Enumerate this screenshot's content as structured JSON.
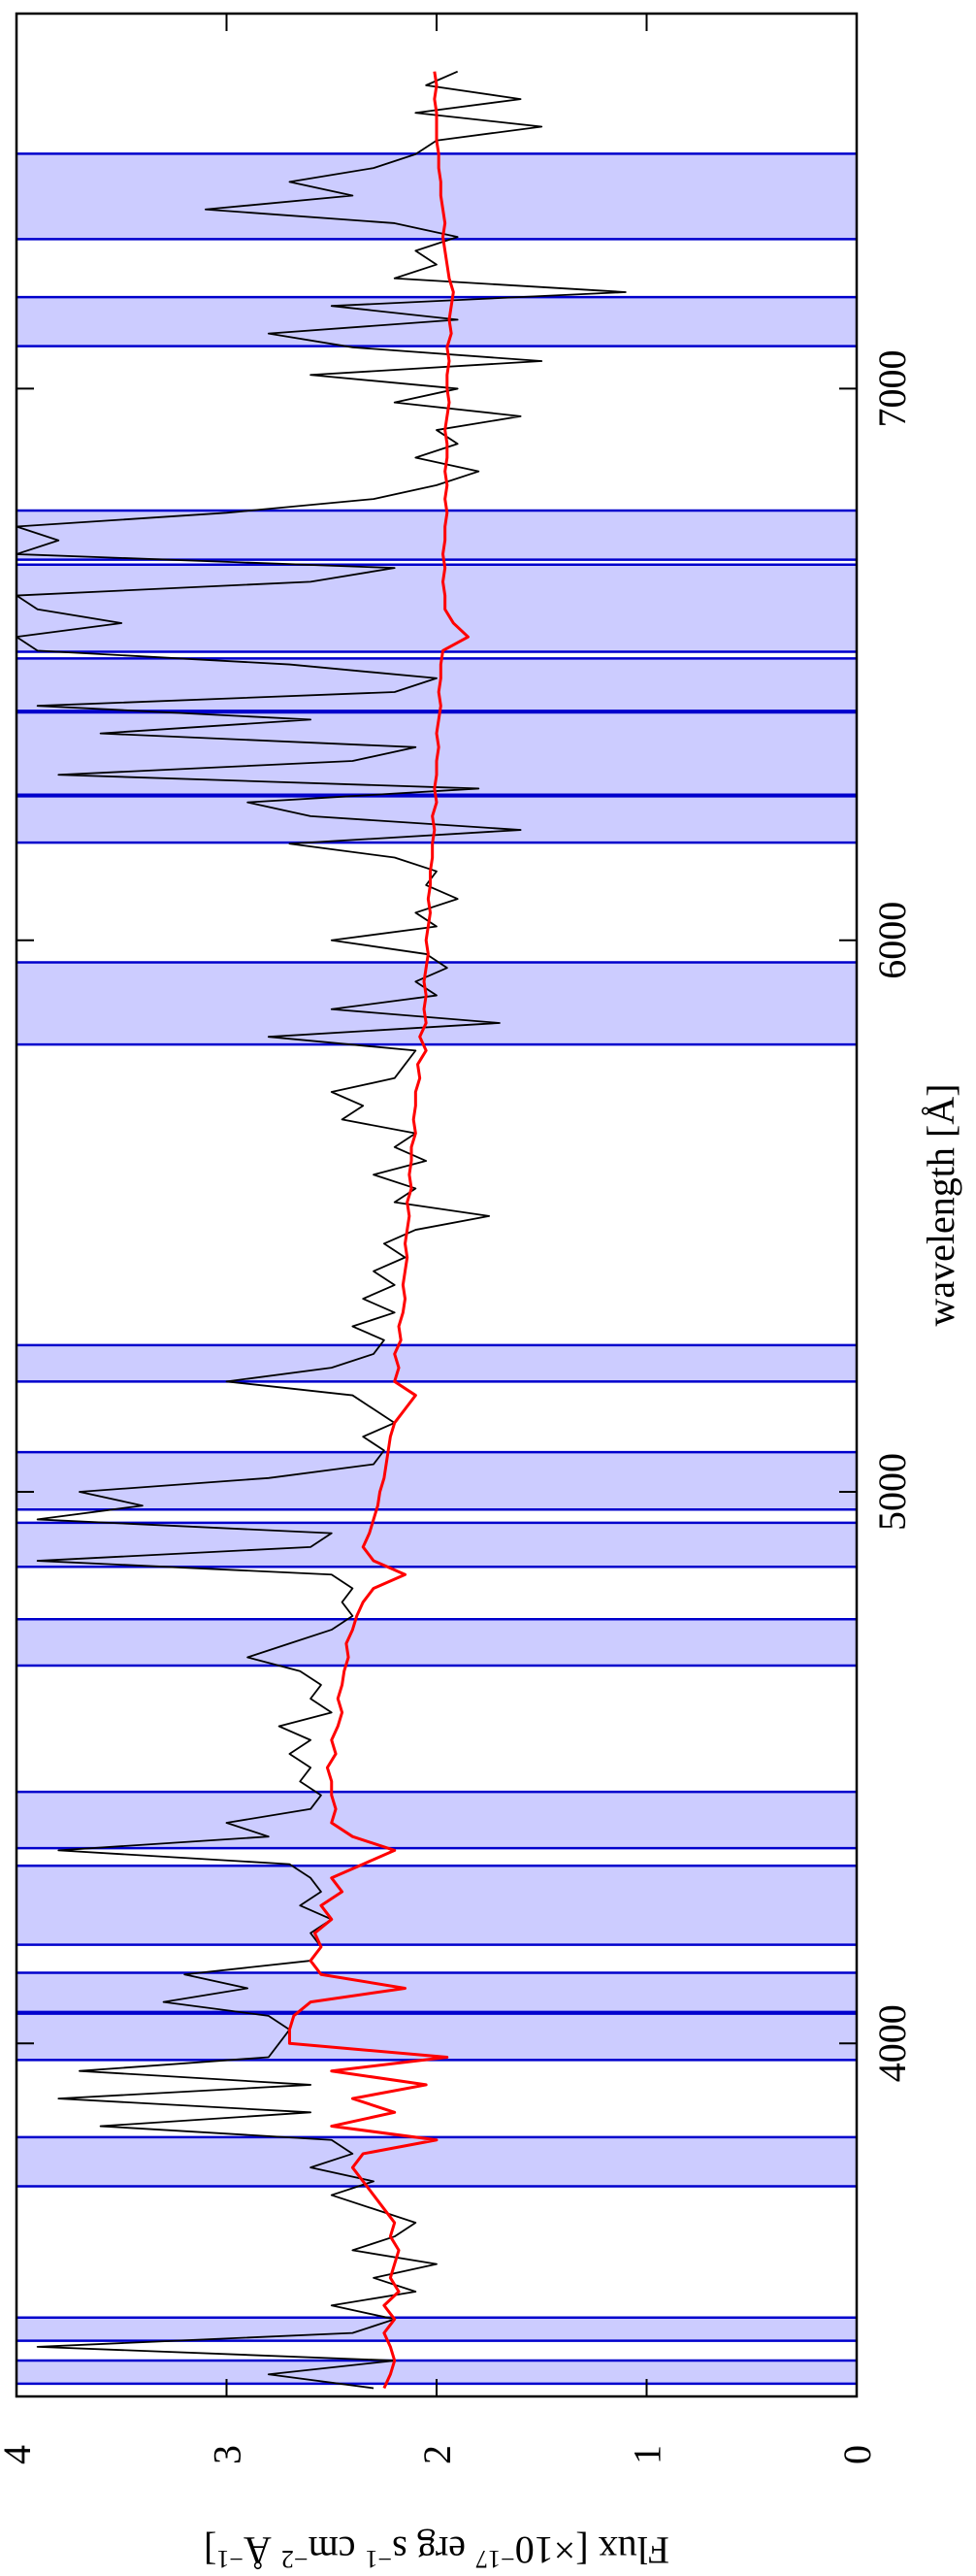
{
  "chart_data": {
    "type": "line",
    "xlabel": "wavelength [Å]",
    "ylabel": [
      "Flux [×10",
      "−17",
      " erg s",
      "−1",
      " cm",
      "−2",
      " Å",
      "−1",
      "]"
    ],
    "xlim": [
      3360,
      7680
    ],
    "ylim": [
      0,
      4
    ],
    "xticks": [
      4000,
      5000,
      6000,
      7000
    ],
    "yticks": [
      0,
      1,
      2,
      3,
      4
    ],
    "region_color": "#ccccff",
    "region_edge_color": "#0000cc",
    "regions": [
      [
        3383,
        3425
      ],
      [
        3461,
        3503
      ],
      [
        3741,
        3830
      ],
      [
        3970,
        4054
      ],
      [
        4057,
        4128
      ],
      [
        4179,
        4322
      ],
      [
        4354,
        4456
      ],
      [
        4685,
        4769
      ],
      [
        4864,
        4944
      ],
      [
        4968,
        5072
      ],
      [
        5200,
        5266
      ],
      [
        5811,
        5960
      ],
      [
        6177,
        6261
      ],
      [
        6264,
        6413
      ],
      [
        6416,
        6511
      ],
      [
        6523,
        6681
      ],
      [
        6690,
        6779
      ],
      [
        7077,
        7166
      ],
      [
        7271,
        7426
      ]
    ],
    "x": [
      3375,
      3400,
      3425,
      3450,
      3475,
      3500,
      3525,
      3550,
      3575,
      3600,
      3625,
      3650,
      3675,
      3700,
      3725,
      3750,
      3775,
      3800,
      3825,
      3850,
      3875,
      3900,
      3925,
      3950,
      3975,
      4000,
      4025,
      4050,
      4075,
      4100,
      4125,
      4150,
      4175,
      4200,
      4225,
      4250,
      4275,
      4300,
      4325,
      4350,
      4375,
      4400,
      4425,
      4450,
      4475,
      4500,
      4525,
      4550,
      4575,
      4600,
      4625,
      4650,
      4675,
      4700,
      4725,
      4750,
      4775,
      4800,
      4825,
      4850,
      4875,
      4900,
      4925,
      4950,
      4975,
      5000,
      5025,
      5050,
      5075,
      5100,
      5125,
      5150,
      5175,
      5200,
      5225,
      5250,
      5275,
      5300,
      5325,
      5350,
      5375,
      5400,
      5425,
      5450,
      5475,
      5500,
      5525,
      5550,
      5575,
      5600,
      5625,
      5650,
      5675,
      5700,
      5725,
      5750,
      5775,
      5800,
      5825,
      5850,
      5875,
      5900,
      5925,
      5950,
      5975,
      6000,
      6025,
      6050,
      6075,
      6100,
      6125,
      6150,
      6175,
      6200,
      6225,
      6250,
      6275,
      6300,
      6325,
      6350,
      6375,
      6400,
      6425,
      6450,
      6475,
      6500,
      6525,
      6550,
      6575,
      6600,
      6625,
      6650,
      6675,
      6700,
      6725,
      6750,
      6775,
      6800,
      6825,
      6850,
      6875,
      6900,
      6925,
      6950,
      6975,
      7000,
      7025,
      7050,
      7075,
      7100,
      7125,
      7150,
      7175,
      7200,
      7225,
      7250,
      7275,
      7300,
      7325,
      7350,
      7375,
      7400,
      7425,
      7450,
      7475,
      7500,
      7525,
      7550,
      7575
    ],
    "series": [
      {
        "color": "#000000",
        "values": [
          2.3,
          2.8,
          2.2,
          3.9,
          2.4,
          2.2,
          2.5,
          2.1,
          2.3,
          2.0,
          2.4,
          2.2,
          2.1,
          2.3,
          2.5,
          2.3,
          2.6,
          2.4,
          2.5,
          3.6,
          2.6,
          3.8,
          2.6,
          3.7,
          2.8,
          2.75,
          2.7,
          2.8,
          3.3,
          2.9,
          3.2,
          2.6,
          2.55,
          2.6,
          2.5,
          2.65,
          2.55,
          2.6,
          2.7,
          3.8,
          2.8,
          3.0,
          2.6,
          2.55,
          2.65,
          2.6,
          2.7,
          2.6,
          2.75,
          2.5,
          2.6,
          2.55,
          2.65,
          2.9,
          2.7,
          2.5,
          2.4,
          2.45,
          2.4,
          2.5,
          3.9,
          2.6,
          2.5,
          3.9,
          3.4,
          3.7,
          2.8,
          2.3,
          2.25,
          2.35,
          2.2,
          2.3,
          2.4,
          3.0,
          2.5,
          2.3,
          2.25,
          2.4,
          2.2,
          2.35,
          2.2,
          2.3,
          2.15,
          2.25,
          2.1,
          1.75,
          2.2,
          2.1,
          2.3,
          2.05,
          2.2,
          2.1,
          2.45,
          2.35,
          2.5,
          2.2,
          2.15,
          2.1,
          2.8,
          1.7,
          2.5,
          2.0,
          2.1,
          1.95,
          2.05,
          2.5,
          2.0,
          2.1,
          1.9,
          2.05,
          2.0,
          2.2,
          2.7,
          1.6,
          2.6,
          2.9,
          1.8,
          3.8,
          2.4,
          2.1,
          3.6,
          2.6,
          3.9,
          2.2,
          2.0,
          2.7,
          3.9,
          4.0,
          3.5,
          3.9,
          4.0,
          2.6,
          2.2,
          4.0,
          3.8,
          4.0,
          3.0,
          2.3,
          2.0,
          1.8,
          2.1,
          1.9,
          2.0,
          1.6,
          2.2,
          1.9,
          2.6,
          1.5,
          2.4,
          2.8,
          1.9,
          2.5,
          1.1,
          2.2,
          2.0,
          2.1,
          1.9,
          2.2,
          3.1,
          2.4,
          2.7,
          2.3,
          2.1,
          2.0,
          1.5,
          2.1,
          1.6,
          2.05,
          1.9
        ]
      },
      {
        "color": "#ff0000",
        "values": [
          2.25,
          2.22,
          2.2,
          2.22,
          2.25,
          2.2,
          2.25,
          2.18,
          2.22,
          2.2,
          2.18,
          2.22,
          2.2,
          2.25,
          2.3,
          2.35,
          2.4,
          2.35,
          2.0,
          2.5,
          2.2,
          2.4,
          2.05,
          2.5,
          1.95,
          2.7,
          2.7,
          2.68,
          2.6,
          2.15,
          2.55,
          2.6,
          2.55,
          2.58,
          2.5,
          2.55,
          2.45,
          2.5,
          2.35,
          2.2,
          2.4,
          2.5,
          2.48,
          2.5,
          2.5,
          2.52,
          2.48,
          2.5,
          2.47,
          2.45,
          2.47,
          2.45,
          2.44,
          2.42,
          2.43,
          2.4,
          2.38,
          2.35,
          2.3,
          2.15,
          2.3,
          2.35,
          2.32,
          2.3,
          2.28,
          2.27,
          2.25,
          2.24,
          2.23,
          2.22,
          2.2,
          2.15,
          2.1,
          2.2,
          2.18,
          2.2,
          2.17,
          2.18,
          2.16,
          2.15,
          2.16,
          2.15,
          2.14,
          2.15,
          2.14,
          2.13,
          2.14,
          2.12,
          2.13,
          2.12,
          2.12,
          2.1,
          2.11,
          2.1,
          2.1,
          2.08,
          2.09,
          2.05,
          2.08,
          2.05,
          2.06,
          2.05,
          2.06,
          2.05,
          2.04,
          2.05,
          2.04,
          2.03,
          2.04,
          2.03,
          2.03,
          2.02,
          2.02,
          2.01,
          2.02,
          2.0,
          2.01,
          2.0,
          2.0,
          1.99,
          2.0,
          1.99,
          1.98,
          1.99,
          1.98,
          1.98,
          1.97,
          1.85,
          1.92,
          1.96,
          1.96,
          1.97,
          1.96,
          1.97,
          1.96,
          1.96,
          1.95,
          1.96,
          1.95,
          1.96,
          1.95,
          1.95,
          1.96,
          1.95,
          1.94,
          1.95,
          1.95,
          1.94,
          1.95,
          1.93,
          1.94,
          1.93,
          1.92,
          1.94,
          1.95,
          1.96,
          1.97,
          1.96,
          1.97,
          1.98,
          1.98,
          1.99,
          1.99,
          2.0,
          2.0,
          2.0,
          2.01,
          2.0,
          2.01
        ]
      }
    ]
  }
}
